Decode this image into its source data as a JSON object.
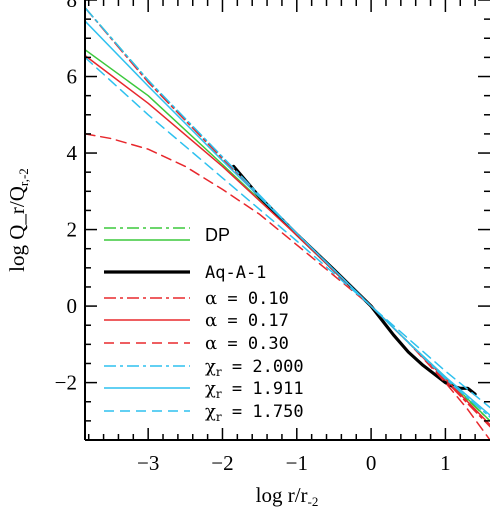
{
  "chart_data": {
    "type": "line",
    "xlabel": "log r/r_{-2}",
    "ylabel": "log Q_r/Q_{r,-2}",
    "xlim": [
      -3.85,
      1.6
    ],
    "ylim": [
      -3.5,
      8
    ],
    "x_ticks": [
      -3,
      -2,
      -1,
      0,
      1
    ],
    "y_ticks": [
      -2,
      0,
      2,
      4,
      6,
      8
    ],
    "x_tick_labels": [
      "−3",
      "−2",
      "−1",
      "0",
      "1"
    ],
    "y_tick_labels": [
      "−2",
      "0",
      "2",
      "4",
      "6",
      "8"
    ],
    "grid": false,
    "legend_position": "lower-left",
    "colors": {
      "green": "#3cc83c",
      "black": "#000000",
      "red": "#e8282d",
      "cyan": "#2ec1ef"
    },
    "legend": [
      {
        "label": "DP",
        "styles": [
          "dashdot",
          "solid"
        ],
        "color": "#3cc83c"
      },
      {
        "label": "Aq-A-1",
        "style": "solid-thick",
        "color": "#000000"
      },
      {
        "label_symbol": "α",
        "label_value": "0.10",
        "style": "dashdot",
        "color": "#e8282d"
      },
      {
        "label_symbol": "α",
        "label_value": "0.17",
        "style": "solid",
        "color": "#e8282d"
      },
      {
        "label_symbol": "α",
        "label_value": "0.30",
        "style": "dashed",
        "color": "#e8282d"
      },
      {
        "label_symbol": "χ",
        "label_sub": "r",
        "label_value": "2.000",
        "style": "dashdot",
        "color": "#2ec1ef"
      },
      {
        "label_symbol": "χ",
        "label_sub": "r",
        "label_value": "1.911",
        "style": "solid",
        "color": "#2ec1ef"
      },
      {
        "label_symbol": "χ",
        "label_sub": "r",
        "label_value": "1.750",
        "style": "dashed",
        "color": "#2ec1ef"
      }
    ],
    "series": [
      {
        "key": "dp_dashdot",
        "color": "#3cc83c",
        "style": "dashdot",
        "width": 1.5,
        "x": [
          -3.85,
          -3,
          -2,
          -1,
          0,
          0.5,
          1,
          1.6
        ],
        "y": [
          7.8,
          5.9,
          3.85,
          1.9,
          0.0,
          -0.95,
          -1.9,
          -3.0
        ]
      },
      {
        "key": "dp_solid",
        "color": "#3cc83c",
        "style": "solid",
        "width": 1.5,
        "x": [
          -3.85,
          -3,
          -2,
          -1,
          0,
          0.5,
          1,
          1.6
        ],
        "y": [
          6.7,
          5.5,
          3.7,
          1.85,
          0.0,
          -0.95,
          -1.85,
          -3.0
        ]
      },
      {
        "key": "aq_a_1",
        "color": "#000000",
        "style": "solid",
        "width": 3.2,
        "x": [
          -1.85,
          -1.5,
          -1,
          -0.5,
          0,
          0.3,
          0.5,
          0.7,
          0.9,
          1.0,
          1.1,
          1.2,
          1.3,
          1.4
        ],
        "y": [
          3.65,
          2.85,
          1.88,
          0.95,
          0.0,
          -0.75,
          -1.2,
          -1.55,
          -1.85,
          -2.0,
          -2.1,
          -2.15,
          -2.15,
          -2.3
        ]
      },
      {
        "key": "alpha_010",
        "color": "#e8282d",
        "style": "dashdot",
        "width": 1.5,
        "x": [
          -3.85,
          -3,
          -2,
          -1,
          0,
          0.5,
          1,
          1.6
        ],
        "y": [
          7.8,
          5.85,
          3.85,
          1.9,
          0.0,
          -0.95,
          -1.95,
          -3.15
        ]
      },
      {
        "key": "alpha_017",
        "color": "#e8282d",
        "style": "solid",
        "width": 1.5,
        "x": [
          -3.85,
          -3,
          -2,
          -1,
          0,
          0.5,
          1,
          1.6
        ],
        "y": [
          6.55,
          5.3,
          3.65,
          1.85,
          0.0,
          -0.95,
          -1.9,
          -3.1
        ]
      },
      {
        "key": "alpha_030",
        "color": "#e8282d",
        "style": "dashed",
        "width": 1.5,
        "x": [
          -3.85,
          -3.5,
          -3,
          -2.5,
          -2,
          -1.5,
          -1,
          -0.5,
          0,
          0.5,
          1,
          1.3,
          1.6
        ],
        "y": [
          4.5,
          4.38,
          4.1,
          3.65,
          3.05,
          2.4,
          1.6,
          0.8,
          0.0,
          -0.95,
          -2.0,
          -2.7,
          -3.5
        ]
      },
      {
        "key": "chi_2000",
        "color": "#2ec1ef",
        "style": "dashdot",
        "width": 1.5,
        "x": [
          -3.85,
          -3,
          -2,
          -1,
          0,
          0.5,
          1,
          1.6
        ],
        "y": [
          7.8,
          5.9,
          3.9,
          1.9,
          0.0,
          -0.95,
          -1.9,
          -2.9
        ]
      },
      {
        "key": "chi_1911",
        "color": "#2ec1ef",
        "style": "solid",
        "width": 1.5,
        "x": [
          -3.85,
          -3,
          -2,
          -1,
          0,
          0.5,
          1,
          1.6
        ],
        "y": [
          7.45,
          5.75,
          3.8,
          1.9,
          0.0,
          -0.95,
          -1.85,
          -2.85
        ]
      },
      {
        "key": "chi_1750",
        "color": "#2ec1ef",
        "style": "dashed",
        "width": 1.5,
        "x": [
          -3.85,
          -3,
          -2,
          -1,
          0,
          0.5,
          1,
          1.6
        ],
        "y": [
          6.5,
          5.0,
          3.35,
          1.7,
          0.0,
          -0.85,
          -1.7,
          -2.65
        ]
      }
    ]
  }
}
